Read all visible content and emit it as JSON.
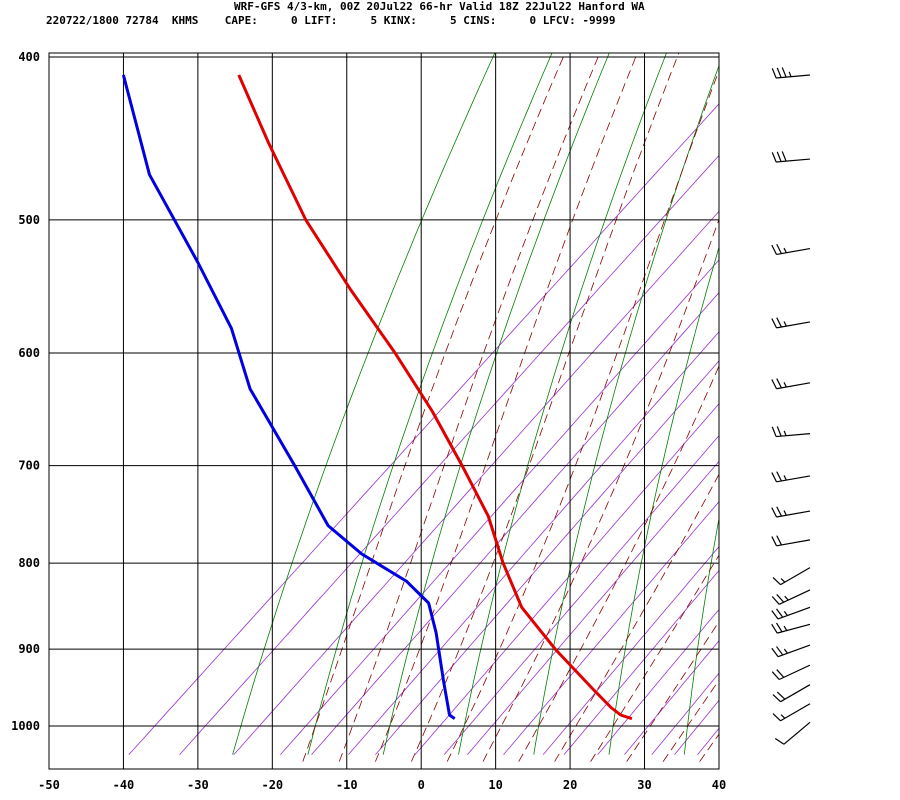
{
  "header": {
    "title": "WRF-GFS 4/3-km, 00Z 20Jul22 66-hr Valid 18Z 22Jul22 Hanford WA",
    "info": "220722/1800 72784  KHMS    CAPE:     0 LIFT:     5 KINX:     5 CINS:     0 LFCV: -9999"
  },
  "chart_data": {
    "type": "skew-t",
    "x_axis": {
      "ticks": [
        -50,
        -40,
        -30,
        -20,
        -10,
        0,
        10,
        20,
        30,
        40
      ],
      "unit": "°C",
      "range": [
        -50,
        40
      ]
    },
    "y_axis": {
      "ticks": [
        400,
        500,
        600,
        700,
        800,
        900,
        1000
      ],
      "unit": "hPa",
      "scale": "log",
      "range": [
        400,
        1040
      ]
    },
    "grid": true,
    "series": [
      {
        "role": "temperature",
        "color": "#e00000",
        "points": [
          {
            "p": 410,
            "t": -24.5
          },
          {
            "p": 450,
            "t": -20.5
          },
          {
            "p": 500,
            "t": -15.5
          },
          {
            "p": 550,
            "t": -9.5
          },
          {
            "p": 600,
            "t": -3.5
          },
          {
            "p": 650,
            "t": 1.5
          },
          {
            "p": 700,
            "t": 5.5
          },
          {
            "p": 750,
            "t": 9.0
          },
          {
            "p": 800,
            "t": 11.0
          },
          {
            "p": 850,
            "t": 13.5
          },
          {
            "p": 900,
            "t": 18.0
          },
          {
            "p": 950,
            "t": 23.0
          },
          {
            "p": 975,
            "t": 25.5
          },
          {
            "p": 985,
            "t": 26.8
          },
          {
            "p": 990,
            "t": 28.3
          }
        ]
      },
      {
        "role": "dewpoint",
        "color": "#0000e0",
        "points": [
          {
            "p": 410,
            "t": -40.0
          },
          {
            "p": 470,
            "t": -36.5
          },
          {
            "p": 530,
            "t": -30.0
          },
          {
            "p": 580,
            "t": -25.5
          },
          {
            "p": 630,
            "t": -23.0
          },
          {
            "p": 700,
            "t": -17.0
          },
          {
            "p": 760,
            "t": -12.5
          },
          {
            "p": 790,
            "t": -8.0
          },
          {
            "p": 820,
            "t": -2.0
          },
          {
            "p": 845,
            "t": 1.0
          },
          {
            "p": 880,
            "t": 2.0
          },
          {
            "p": 940,
            "t": 3.0
          },
          {
            "p": 985,
            "t": 3.8
          },
          {
            "p": 990,
            "t": 4.5
          }
        ]
      }
    ],
    "wind_barbs": [
      {
        "p": 410,
        "dir": 265,
        "spd": 35
      },
      {
        "p": 460,
        "dir": 265,
        "spd": 30
      },
      {
        "p": 520,
        "dir": 260,
        "spd": 25
      },
      {
        "p": 575,
        "dir": 260,
        "spd": 25
      },
      {
        "p": 625,
        "dir": 260,
        "spd": 25
      },
      {
        "p": 670,
        "dir": 265,
        "spd": 25
      },
      {
        "p": 710,
        "dir": 260,
        "spd": 25
      },
      {
        "p": 745,
        "dir": 260,
        "spd": 25
      },
      {
        "p": 775,
        "dir": 260,
        "spd": 20
      },
      {
        "p": 805,
        "dir": 240,
        "spd": 15
      },
      {
        "p": 830,
        "dir": 245,
        "spd": 25
      },
      {
        "p": 850,
        "dir": 250,
        "spd": 25
      },
      {
        "p": 870,
        "dir": 255,
        "spd": 25
      },
      {
        "p": 895,
        "dir": 250,
        "spd": 25
      },
      {
        "p": 920,
        "dir": 245,
        "spd": 20
      },
      {
        "p": 945,
        "dir": 240,
        "spd": 20
      },
      {
        "p": 970,
        "dir": 240,
        "spd": 15
      },
      {
        "p": 995,
        "dir": 230,
        "spd": 10
      }
    ],
    "background_colors": {
      "isotherm": "#000000",
      "dry_adiabat": "#008000",
      "moist_adiabat": "#8b0000",
      "mixing_ratio": "#9932cc"
    }
  }
}
